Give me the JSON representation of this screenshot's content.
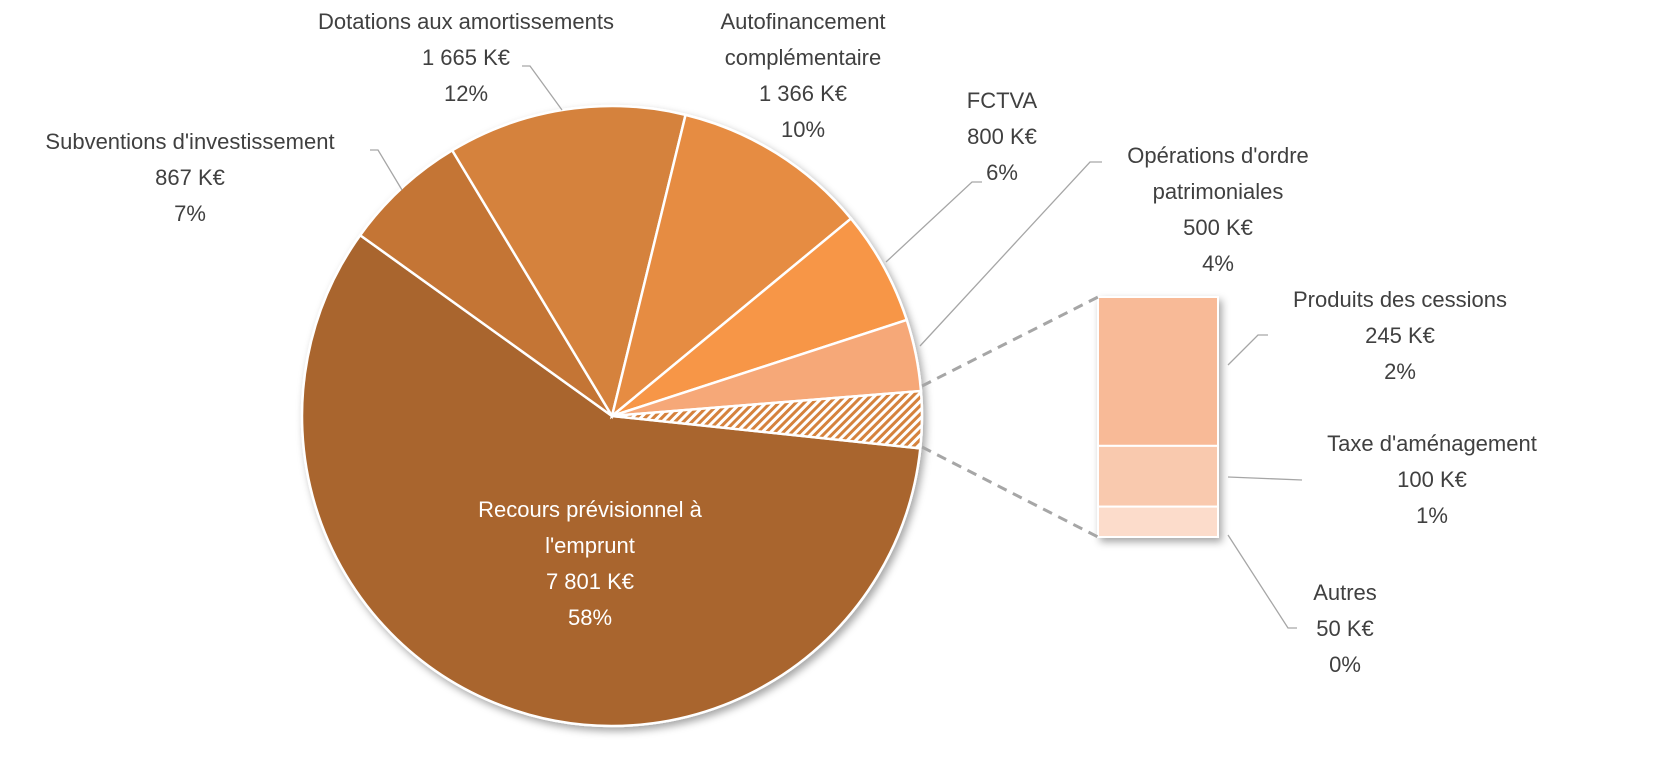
{
  "chart_data": {
    "type": "pie",
    "categories": [
      "Recours prévisionnel à l'emprunt",
      "Subventions d'investissement",
      "Dotations aux amortissements",
      "Autofinancement complémentaire",
      "FCTVA",
      "Opérations d'ordre patrimoniales"
    ],
    "values": [
      7801,
      867,
      1665,
      1366,
      800,
      500
    ],
    "value_labels": [
      "7 801 K€",
      "867 K€",
      "1 665 K€",
      "1 366 K€",
      "800 K€",
      "500 K€"
    ],
    "percent_labels": [
      "58%",
      "7%",
      "12%",
      "10%",
      "6%",
      "4%"
    ],
    "colors": [
      "#a9652d",
      "#c47434",
      "#d5823d",
      "#e68c43",
      "#f79646",
      "#f6a878"
    ],
    "secondary": {
      "categories": [
        "Produits des cessions",
        "Taxe d'aménagement",
        "Autres"
      ],
      "values": [
        245,
        100,
        50
      ],
      "value_labels": [
        "245 K€",
        "100 K€",
        "50 K€"
      ],
      "percent_labels": [
        "2%",
        "1%",
        "0%"
      ],
      "colors": [
        "#f8ba97",
        "#f9c9ae",
        "#fcdccb"
      ]
    }
  }
}
